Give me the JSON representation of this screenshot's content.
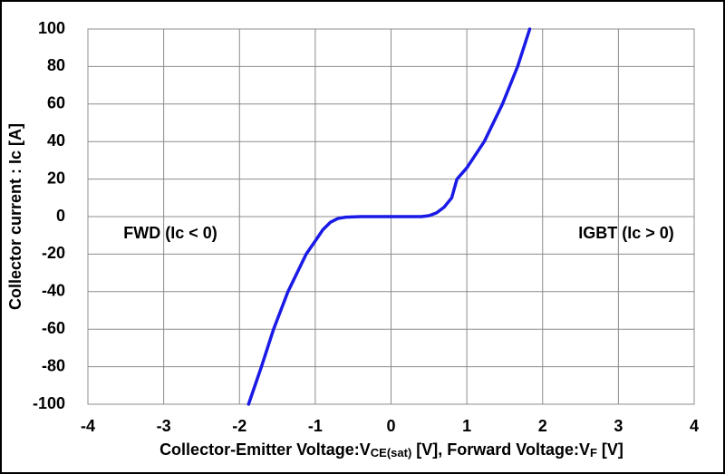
{
  "chart_data": {
    "type": "line",
    "xlabel": [
      {
        "text": "Collector-Emitter Voltage:V"
      },
      {
        "text": "CE(sat)",
        "subscript": true
      },
      {
        "text": " [V], Forward Voltage:V"
      },
      {
        "text": "F",
        "subscript": true
      },
      {
        "text": " [V]"
      }
    ],
    "ylabel": "Collector current : Ic [A]",
    "annotations": [
      "FWD (Ic < 0)",
      "IGBT (Ic > 0)"
    ],
    "x": [
      -1.88,
      -1.71,
      -1.55,
      -1.36,
      -1.12,
      -1.0,
      -0.9,
      -0.8,
      -0.7,
      -0.6,
      -0.4,
      -0.2,
      0,
      0.2,
      0.4,
      0.5,
      0.6,
      0.7,
      0.8,
      0.87,
      1.0,
      1.23,
      1.47,
      1.67,
      1.83
    ],
    "series": [
      {
        "color": "#1a1ae6",
        "values": [
          -100,
          -80,
          -60,
          -40,
          -20,
          -13,
          -7,
          -3,
          -1,
          -0.3,
          0,
          0,
          0,
          0,
          0,
          0.5,
          2,
          5,
          10,
          20,
          26,
          40,
          60,
          80,
          100
        ]
      }
    ],
    "xlim": [
      -4,
      4
    ],
    "xticks": [
      -4,
      -3,
      -2,
      -1,
      0,
      1,
      2,
      3,
      4
    ],
    "ylim": [
      -100,
      100
    ],
    "yticks": [
      -100,
      -80,
      -60,
      -40,
      -20,
      0,
      20,
      40,
      60,
      80,
      100
    ],
    "grid": true
  }
}
